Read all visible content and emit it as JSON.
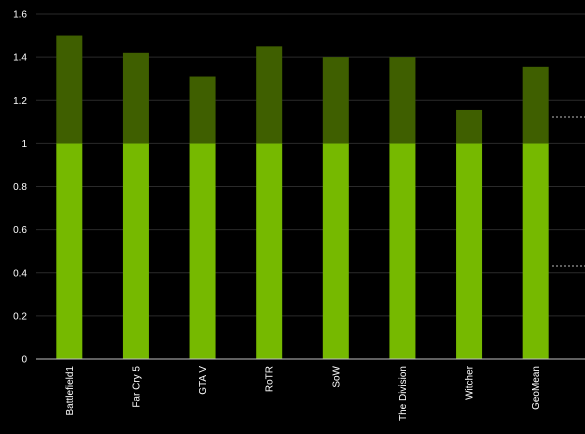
{
  "chart_data": {
    "type": "stacked_bar",
    "categories": [
      "Battlefield1",
      "Far Cry 5",
      "GTA V",
      "RoTR",
      "SoW",
      "The Division",
      "Witcher",
      "GeoMean"
    ],
    "series": [
      {
        "color": "#76b900",
        "values": [
          1,
          1,
          1,
          1,
          1,
          1,
          1,
          1
        ]
      },
      {
        "color": "#3f5f00",
        "values": [
          0.5,
          0.42,
          0.31,
          0.45,
          0.4,
          0.4,
          0.155,
          0.355
        ]
      }
    ],
    "ylim": [
      0,
      1.6
    ],
    "yticks": [
      0,
      0.2,
      0.4,
      0.6,
      0.8,
      1,
      1.2,
      1.4,
      1.6
    ],
    "grid": true
  }
}
